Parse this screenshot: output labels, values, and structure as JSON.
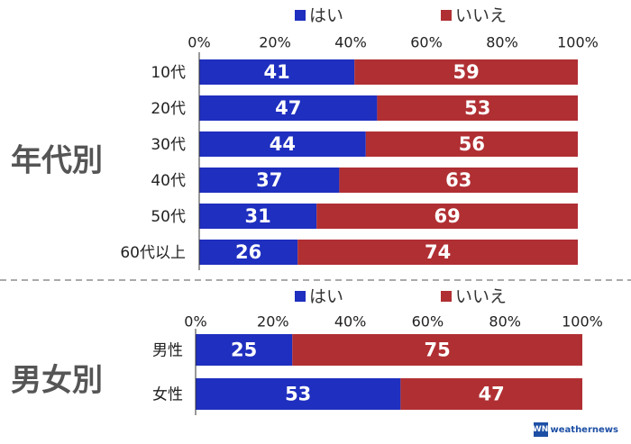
{
  "colors": {
    "yes": "#1f2fbf",
    "no": "#b02f33",
    "axis": "#333333",
    "divider": "#aaaaaa"
  },
  "chart_data": [
    {
      "type": "bar",
      "orientation": "horizontal",
      "stacked": true,
      "group_label": "年代別",
      "categories": [
        "10代",
        "20代",
        "30代",
        "40代",
        "50代",
        "60代以上"
      ],
      "series": [
        {
          "name": "はい",
          "values": [
            41,
            47,
            44,
            37,
            31,
            26
          ]
        },
        {
          "name": "いいえ",
          "values": [
            59,
            53,
            56,
            63,
            69,
            74
          ]
        }
      ],
      "xlim": [
        0,
        100
      ],
      "xticks": [
        "0%",
        "20%",
        "40%",
        "60%",
        "80%",
        "100%"
      ],
      "legend": "top"
    },
    {
      "type": "bar",
      "orientation": "horizontal",
      "stacked": true,
      "group_label": "男女別",
      "categories": [
        "男性",
        "女性"
      ],
      "series": [
        {
          "name": "はい",
          "values": [
            25,
            53
          ]
        },
        {
          "name": "いいえ",
          "values": [
            75,
            47
          ]
        }
      ],
      "xlim": [
        0,
        100
      ],
      "xticks": [
        "0%",
        "20%",
        "40%",
        "60%",
        "80%",
        "100%"
      ],
      "legend": "top"
    }
  ],
  "logo": {
    "mark": "WN",
    "text": "weathernews",
    "icon": "weathernews-logo-icon"
  }
}
